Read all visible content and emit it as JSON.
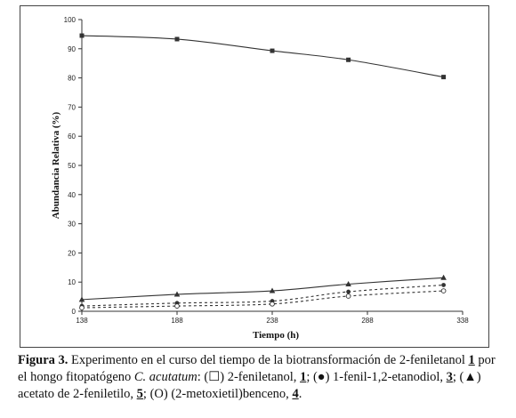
{
  "chart_data": {
    "type": "line",
    "xlabel": "Tiempo (h)",
    "ylabel": "Abundancia Relativa (%)",
    "xlim": [
      138,
      338
    ],
    "ylim": [
      0,
      100
    ],
    "x_ticks": [
      138,
      188,
      238,
      288,
      338
    ],
    "y_ticks": [
      0,
      10,
      20,
      30,
      40,
      50,
      60,
      70,
      80,
      90,
      100
    ],
    "grid": false,
    "legend": "none",
    "series": [
      {
        "marker": "square",
        "line": "solid",
        "color": "#333333",
        "x": [
          138,
          188,
          238,
          278,
          328
        ],
        "y": [
          94.5,
          93.3,
          89.3,
          86.2,
          80.3
        ]
      },
      {
        "marker": "triangle",
        "line": "solid",
        "color": "#333333",
        "x": [
          138,
          188,
          238,
          278,
          328
        ],
        "y": [
          4.0,
          5.8,
          7.0,
          9.3,
          11.5
        ]
      },
      {
        "marker": "circle-filled",
        "line": "dashed",
        "color": "#333333",
        "x": [
          138,
          188,
          238,
          278,
          328
        ],
        "y": [
          1.8,
          2.8,
          3.5,
          6.7,
          9.0
        ]
      },
      {
        "marker": "circle-open",
        "line": "dashed",
        "color": "#333333",
        "x": [
          138,
          188,
          238,
          278,
          328
        ],
        "y": [
          1.2,
          1.8,
          2.5,
          5.2,
          7.0
        ]
      }
    ]
  },
  "caption": {
    "label": "Figura 3.",
    "t1": " Experimento en el curso del tiempo de la biotransformación de 2-feniletanol ",
    "c1": "1",
    "t2": " por el hongo fitopatógeno ",
    "species": "C. acutatum",
    "t3": ": (",
    "sym1": "☐",
    "t4": ") 2-feniletanol, ",
    "c2": "1",
    "t5": "; (",
    "sym2": "●",
    "t6": ") 1-fenil-1,2-etanodiol, ",
    "c3": "3",
    "t7": "; (",
    "sym3": "▲",
    "t8": ") acetato de 2-feniletilo, ",
    "c4": "5",
    "t9": "; (",
    "sym4": "O",
    "t10": ") (2-metoxietil)benceno, ",
    "c5": "4",
    "t11": "."
  }
}
